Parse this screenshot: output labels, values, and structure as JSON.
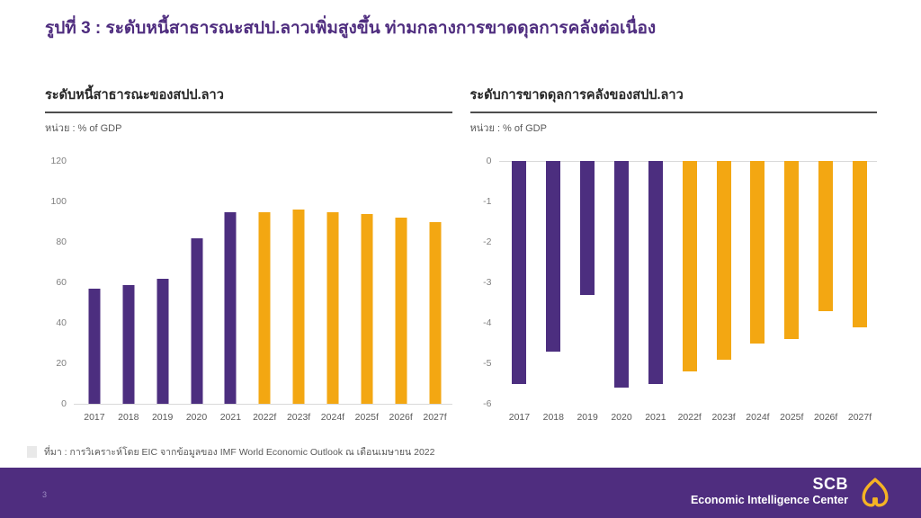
{
  "title": "รูปที่ 3 : ระดับหนี้สาธารณะสปป.ลาวเพิ่มสูงขึ้น ท่ามกลางการขาดดุลการคลังต่อเนื่อง",
  "source": "ที่มา : การวิเคราะห์โดย EIC จากข้อมูลของ IMF World Economic Outlook ณ เดือนเมษายน 2022",
  "footer": {
    "page_number": "3",
    "brand_top": "SCB",
    "brand_sub": "Economic Intelligence Center"
  },
  "colors": {
    "brand_purple": "#4F2D7F",
    "bar_purple": "#4C2E7F",
    "bar_gold": "#F3A712",
    "logo_gold": "#F5B324",
    "axis_gray": "#7f7f7f",
    "text_gray": "#595959"
  },
  "chart_data": [
    {
      "type": "bar",
      "title": "ระดับหนี้สาธารณะของสปป.ลาว",
      "unit_label": "หน่วย : % of GDP",
      "categories": [
        "2017",
        "2018",
        "2019",
        "2020",
        "2021",
        "2022f",
        "2023f",
        "2024f",
        "2025f",
        "2026f",
        "2027f"
      ],
      "values": [
        57,
        59,
        62,
        82,
        95,
        95,
        96,
        95,
        94,
        92,
        90
      ],
      "ylim": [
        0,
        120
      ],
      "yticks": [
        0,
        20,
        40,
        60,
        80,
        100,
        120
      ],
      "bar_colors": [
        "#4C2E7F",
        "#4C2E7F",
        "#4C2E7F",
        "#4C2E7F",
        "#4C2E7F",
        "#F3A712",
        "#F3A712",
        "#F3A712",
        "#F3A712",
        "#F3A712",
        "#F3A712"
      ],
      "grid": false,
      "legend": "none"
    },
    {
      "type": "bar",
      "title": "ระดับการขาดดุลการคลังของสปป.ลาว",
      "unit_label": "หน่วย : % of GDP",
      "categories": [
        "2017",
        "2018",
        "2019",
        "2020",
        "2021",
        "2022f",
        "2023f",
        "2024f",
        "2025f",
        "2026f",
        "2027f"
      ],
      "values": [
        -5.5,
        -4.7,
        -3.3,
        -5.6,
        -5.5,
        -5.2,
        -4.9,
        -4.5,
        -4.4,
        -3.7,
        -4.1
      ],
      "ylim": [
        -6,
        0
      ],
      "yticks": [
        0,
        -1,
        -2,
        -3,
        -4,
        -5,
        -6
      ],
      "bar_colors": [
        "#4C2E7F",
        "#4C2E7F",
        "#4C2E7F",
        "#4C2E7F",
        "#4C2E7F",
        "#F3A712",
        "#F3A712",
        "#F3A712",
        "#F3A712",
        "#F3A712",
        "#F3A712"
      ],
      "grid": false,
      "legend": "none"
    }
  ]
}
